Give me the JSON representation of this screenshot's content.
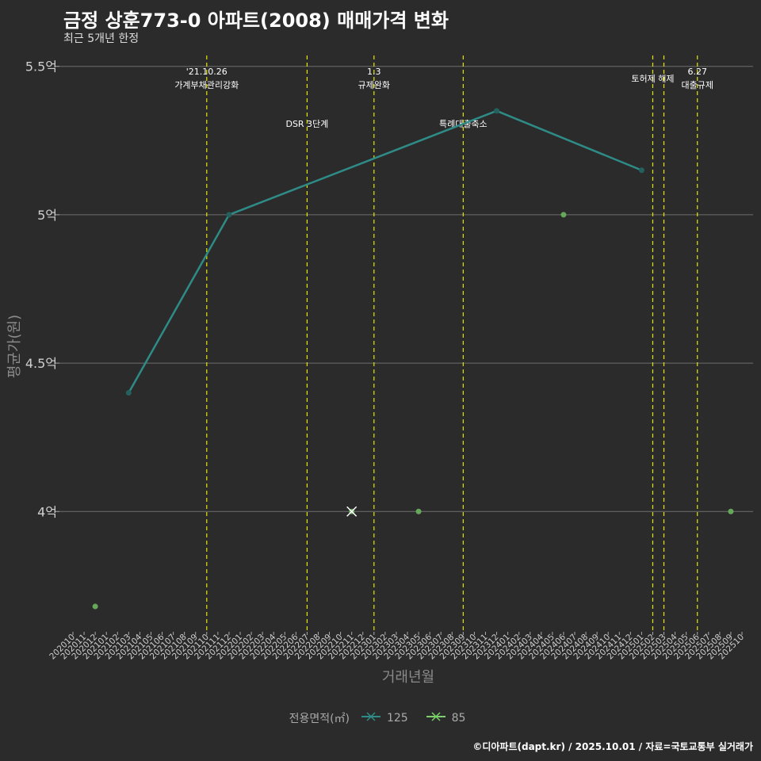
{
  "title": "금정 상훈773-0 아파트(2008) 매매가격 변화",
  "subtitle": "최근 5개년 한정",
  "source": "©디아파트(dapt.kr) / 2025.10.01 / 자료=국토교통부 실거래가",
  "colors": {
    "background": "#2b2b2b",
    "grid": "#6e6e6e",
    "event": "#e5e500",
    "s125": "#2e8b86",
    "s85": "#7bd26b"
  },
  "chart_data": {
    "type": "line",
    "xlabel": "거래년월",
    "ylabel": "평균가(원)",
    "x_ticks": [
      "202010",
      "202011",
      "202012",
      "202101",
      "202102",
      "202103",
      "202104",
      "202105",
      "202106",
      "202107",
      "202108",
      "202109",
      "202110",
      "202111",
      "202112",
      "202201",
      "202202",
      "202203",
      "202204",
      "202205",
      "202206",
      "202207",
      "202208",
      "202209",
      "202210",
      "202211",
      "202212",
      "202301",
      "202302",
      "202303",
      "202304",
      "202305",
      "202306",
      "202307",
      "202308",
      "202309",
      "202310",
      "202311",
      "202312",
      "202401",
      "202402",
      "202403",
      "202404",
      "202405",
      "202406",
      "202407",
      "202408",
      "202409",
      "202410",
      "202411",
      "202412",
      "202501",
      "202502",
      "202503",
      "202504",
      "202505",
      "202506",
      "202507",
      "202508",
      "202509",
      "202510"
    ],
    "ylim": [
      3.6,
      5.55
    ],
    "y_ticks": [
      {
        "value": 4.0,
        "label": "4억"
      },
      {
        "value": 4.5,
        "label": "4.5억"
      },
      {
        "value": 5.0,
        "label": "5억"
      },
      {
        "value": 5.5,
        "label": "5.5억"
      }
    ],
    "series": [
      {
        "name": "125",
        "points": [
          {
            "x": "202103",
            "y": 4.4
          },
          {
            "x": "202112",
            "y": 5.0
          },
          {
            "x": "202312",
            "y": 5.35
          },
          {
            "x": "202501",
            "y": 5.15
          }
        ]
      },
      {
        "name": "85",
        "points": [
          {
            "x": "202012",
            "y": 3.68
          },
          {
            "x": "202211",
            "y": 4.0
          },
          {
            "x": "202305",
            "y": 4.0
          },
          {
            "x": "202406",
            "y": 5.0
          },
          {
            "x": "202509",
            "y": 4.0
          }
        ]
      }
    ],
    "cross_marker": {
      "x": "202211",
      "y": 4.0
    },
    "events": [
      {
        "x": "202110",
        "lines": [
          "'21.10.26",
          "가계부채관리강화"
        ]
      },
      {
        "x": "202207",
        "lines": [
          "DSR 3단계"
        ]
      },
      {
        "x": "202301",
        "lines": [
          "1.3",
          "규제완화"
        ]
      },
      {
        "x": "202309",
        "lines": [
          "특례대출축소"
        ]
      },
      {
        "x": "202502",
        "lines": [
          "토허제 해제"
        ]
      },
      {
        "x": "202503",
        "lines": []
      },
      {
        "x": "202506",
        "lines": [
          "6.27",
          "대출규제"
        ]
      }
    ],
    "legend": {
      "title": "전용면적(㎡)",
      "items": [
        "125",
        "85"
      ]
    }
  }
}
